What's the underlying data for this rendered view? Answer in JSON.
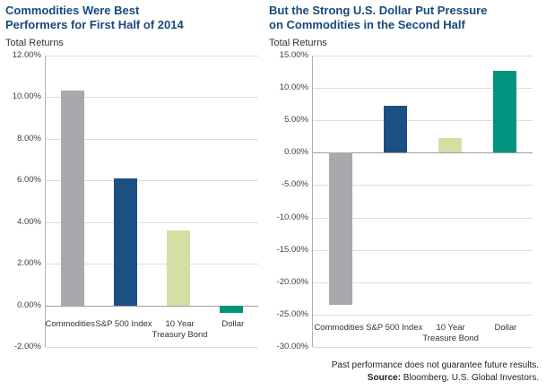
{
  "colors": {
    "title_blue": "#17497c",
    "bar_gray": "#a7a9ac",
    "bar_dark_blue": "#1c4f82",
    "bar_light_green": "#d3e0a5",
    "bar_teal": "#00947e",
    "gridline": "#dcdcdc",
    "zero_line": "#9c9c9c"
  },
  "footer": {
    "disclaimer": "Past performance does not guarantee future results.",
    "source_label": "Source:",
    "source_text": " Bloomberg, U.S. Global Investors."
  },
  "chart_data": [
    {
      "type": "bar",
      "title_lines": [
        "Commodities Were Best",
        "Performers for First Half of 2014"
      ],
      "subtitle": "Total Returns",
      "categories": [
        [
          "Commodities"
        ],
        [
          "S&P 500 Index"
        ],
        [
          "10 Year",
          "Treasury Bond"
        ],
        [
          "Dollar"
        ]
      ],
      "values": [
        10.3,
        6.1,
        3.6,
        -0.35
      ],
      "bar_colors": [
        "#a7a9ac",
        "#1c4f82",
        "#d3e0a5",
        "#00947e"
      ],
      "ylim": [
        -2,
        15
      ],
      "ylim_note": "axis runs -2.00% to 12.00%",
      "ymin": -2,
      "ymax": 12,
      "ytick_step": 2,
      "ytick_format": "0.00%",
      "grid": true,
      "legend": false
    },
    {
      "type": "bar",
      "title_lines": [
        "But the Strong U.S. Dollar Put Pressure",
        "on Commodities in the Second Half"
      ],
      "subtitle": "Total Returns",
      "categories": [
        [
          "Commodities"
        ],
        [
          "S&P 500 Index"
        ],
        [
          "10 Year",
          "Treasure Bond"
        ],
        [
          "Dollar"
        ]
      ],
      "values": [
        -23.5,
        7.3,
        2.2,
        12.7
      ],
      "bar_colors": [
        "#a7a9ac",
        "#1c4f82",
        "#d3e0a5",
        "#00947e"
      ],
      "ymin": -30,
      "ymax": 15,
      "ytick_step": 5,
      "ytick_format": "0.00%",
      "grid": true,
      "legend": false
    }
  ]
}
